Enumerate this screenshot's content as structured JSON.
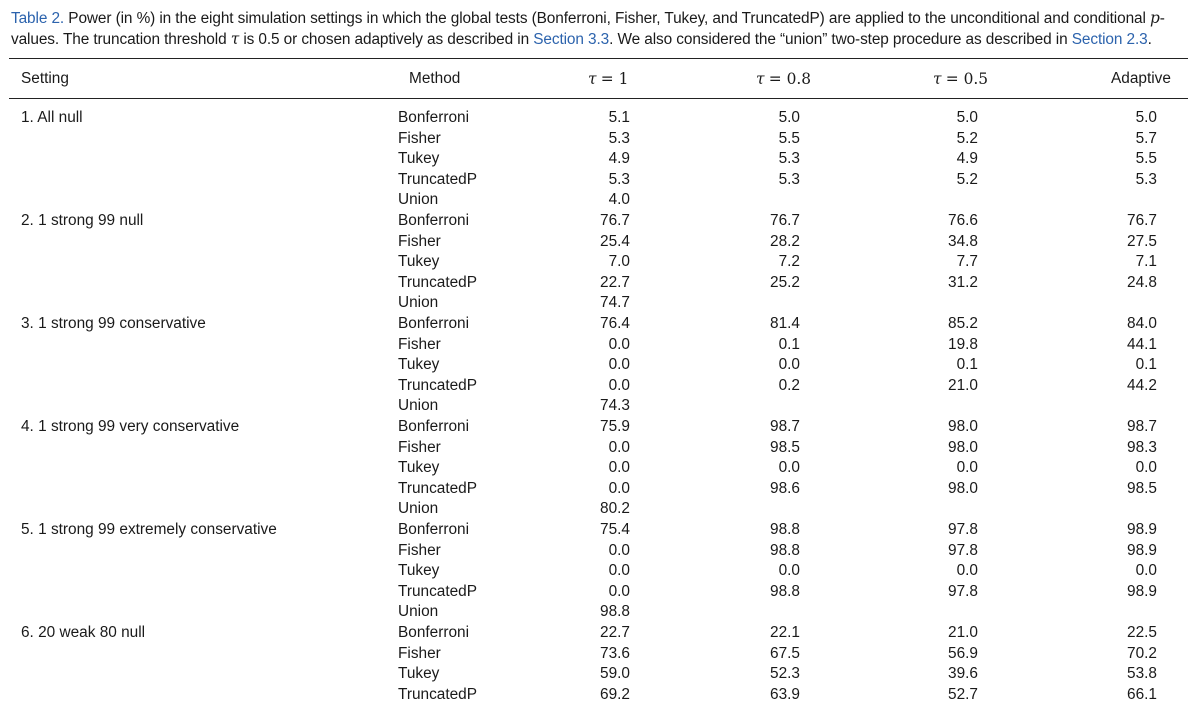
{
  "caption": {
    "label": "Table 2.",
    "part1": " Power (in %) in the eight simulation settings in which the global tests (Bonferroni, Fisher, Tukey, and TruncatedP) are applied to the unconditional and conditional ",
    "p_italic": "p",
    "part2": "-values. The truncation threshold ",
    "tau": "τ",
    "part3": " is 0.5 or chosen adaptively as described in ",
    "link1": "Section 3.3",
    "part4": ". We also considered the “union” two-step procedure as described in ",
    "link2": "Section 2.3",
    "part5": "."
  },
  "header": {
    "setting": "Setting",
    "method": "Method",
    "tau_symbol": "τ",
    "col1_value": "= 1",
    "col2_value": "= 0.8",
    "col3_value": "= 0.5",
    "col4": "Adaptive"
  },
  "rows": [
    {
      "setting": "1. All null",
      "method": "Bonferroni",
      "v": [
        "5.1",
        "5.0",
        "5.0",
        "5.0"
      ]
    },
    {
      "setting": "",
      "method": "Fisher",
      "v": [
        "5.3",
        "5.5",
        "5.2",
        "5.7"
      ]
    },
    {
      "setting": "",
      "method": "Tukey",
      "v": [
        "4.9",
        "5.3",
        "4.9",
        "5.5"
      ]
    },
    {
      "setting": "",
      "method": "TruncatedP",
      "v": [
        "5.3",
        "5.3",
        "5.2",
        "5.3"
      ]
    },
    {
      "setting": "",
      "method": "Union",
      "v": [
        "4.0",
        "",
        "",
        ""
      ]
    },
    {
      "setting": "2. 1 strong 99 null",
      "method": "Bonferroni",
      "v": [
        "76.7",
        "76.7",
        "76.6",
        "76.7"
      ]
    },
    {
      "setting": "",
      "method": "Fisher",
      "v": [
        "25.4",
        "28.2",
        "34.8",
        "27.5"
      ]
    },
    {
      "setting": "",
      "method": "Tukey",
      "v": [
        "7.0",
        "7.2",
        "7.7",
        "7.1"
      ]
    },
    {
      "setting": "",
      "method": "TruncatedP",
      "v": [
        "22.7",
        "25.2",
        "31.2",
        "24.8"
      ]
    },
    {
      "setting": "",
      "method": "Union",
      "v": [
        "74.7",
        "",
        "",
        ""
      ]
    },
    {
      "setting": "3. 1 strong 99 conservative",
      "method": "Bonferroni",
      "v": [
        "76.4",
        "81.4",
        "85.2",
        "84.0"
      ]
    },
    {
      "setting": "",
      "method": "Fisher",
      "v": [
        "0.0",
        "0.1",
        "19.8",
        "44.1"
      ]
    },
    {
      "setting": "",
      "method": "Tukey",
      "v": [
        "0.0",
        "0.0",
        "0.1",
        "0.1"
      ]
    },
    {
      "setting": "",
      "method": "TruncatedP",
      "v": [
        "0.0",
        "0.2",
        "21.0",
        "44.2"
      ]
    },
    {
      "setting": "",
      "method": "Union",
      "v": [
        "74.3",
        "",
        "",
        ""
      ]
    },
    {
      "setting": "4. 1 strong 99 very conservative",
      "method": "Bonferroni",
      "v": [
        "75.9",
        "98.7",
        "98.0",
        "98.7"
      ]
    },
    {
      "setting": "",
      "method": "Fisher",
      "v": [
        "0.0",
        "98.5",
        "98.0",
        "98.3"
      ]
    },
    {
      "setting": "",
      "method": "Tukey",
      "v": [
        "0.0",
        "0.0",
        "0.0",
        "0.0"
      ]
    },
    {
      "setting": "",
      "method": "TruncatedP",
      "v": [
        "0.0",
        "98.6",
        "98.0",
        "98.5"
      ]
    },
    {
      "setting": "",
      "method": "Union",
      "v": [
        "80.2",
        "",
        "",
        ""
      ]
    },
    {
      "setting": "5. 1 strong 99 extremely conservative",
      "method": "Bonferroni",
      "v": [
        "75.4",
        "98.8",
        "97.8",
        "98.9"
      ]
    },
    {
      "setting": "",
      "method": "Fisher",
      "v": [
        "0.0",
        "98.8",
        "97.8",
        "98.9"
      ]
    },
    {
      "setting": "",
      "method": "Tukey",
      "v": [
        "0.0",
        "0.0",
        "0.0",
        "0.0"
      ]
    },
    {
      "setting": "",
      "method": "TruncatedP",
      "v": [
        "0.0",
        "98.8",
        "97.8",
        "98.9"
      ]
    },
    {
      "setting": "",
      "method": "Union",
      "v": [
        "98.8",
        "",
        "",
        ""
      ]
    },
    {
      "setting": "6. 20 weak 80 null",
      "method": "Bonferroni",
      "v": [
        "22.7",
        "22.1",
        "21.0",
        "22.5"
      ]
    },
    {
      "setting": "",
      "method": "Fisher",
      "v": [
        "73.6",
        "67.5",
        "56.9",
        "70.2"
      ]
    },
    {
      "setting": "",
      "method": "Tukey",
      "v": [
        "59.0",
        "52.3",
        "39.6",
        "53.8"
      ]
    },
    {
      "setting": "",
      "method": "TruncatedP",
      "v": [
        "69.2",
        "63.9",
        "52.7",
        "66.1"
      ]
    }
  ]
}
